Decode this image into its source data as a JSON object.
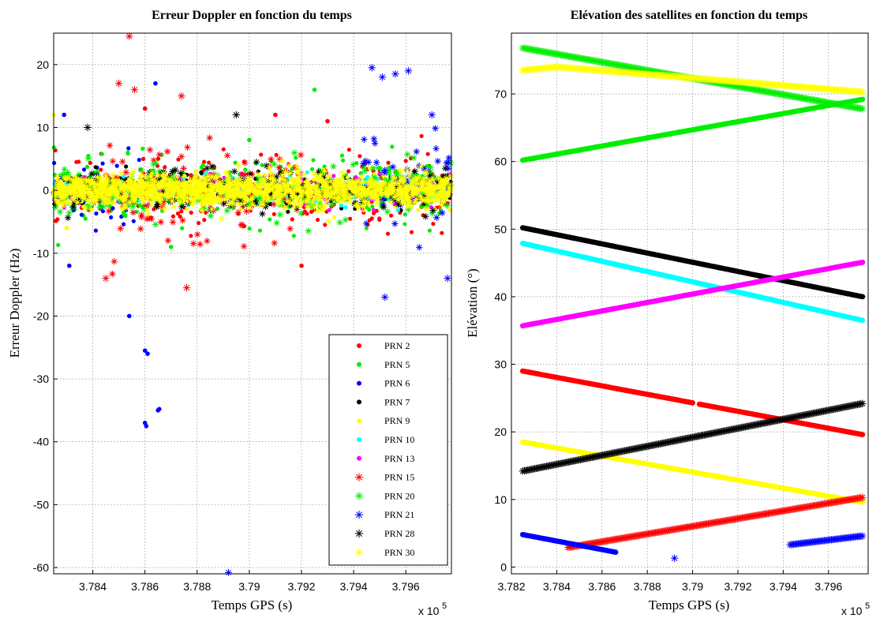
{
  "chart_data": [
    {
      "type": "scatter",
      "title": "Erreur Doppler en fonction du temps",
      "xlabel": "Temps GPS (s)",
      "ylabel": "Erreur Doppler (Hz)",
      "x_multiplier_label": "x 10",
      "x_multiplier_exp": "5",
      "xlim": [
        378250,
        379775
      ],
      "ylim": [
        -61,
        25
      ],
      "xticks": [
        378400,
        378600,
        378800,
        379000,
        379200,
        379400,
        379600
      ],
      "xtick_labels": [
        "3.784",
        "3.786",
        "3.788",
        "3.79",
        "3.792",
        "3.794",
        "3.796"
      ],
      "yticks": [
        -60,
        -50,
        -40,
        -30,
        -20,
        -10,
        0,
        10,
        20
      ],
      "ytick_labels": [
        "-60",
        "-50",
        "-40",
        "-30",
        "-20",
        "-10",
        "0",
        "10",
        "20"
      ],
      "grid": true,
      "legend_position": "bottom-right",
      "series": [
        {
          "name": "PRN 2",
          "color": "#ff0000",
          "marker": "dot",
          "x_range": [
            378250,
            379775
          ],
          "spread": 3.0,
          "peaks": [
            [
              379100,
              12
            ],
            [
              379200,
              -12
            ],
            [
              378600,
              13
            ],
            [
              379300,
              11
            ]
          ]
        },
        {
          "name": "PRN 5",
          "color": "#00ee00",
          "marker": "dot",
          "x_range": [
            378250,
            379775
          ],
          "spread": 2.5,
          "peaks": [
            [
              379250,
              16
            ],
            [
              378700,
              -9
            ],
            [
              379000,
              8
            ]
          ]
        },
        {
          "name": "PRN 6",
          "color": "#0000ff",
          "marker": "dot",
          "x_range": [
            378250,
            378660
          ],
          "spread": 3.5,
          "peaks": [
            [
              378600,
              -25.5
            ],
            [
              378610,
              -26
            ],
            [
              378600,
              -37
            ],
            [
              378605,
              -37.5
            ],
            [
              378650,
              -35
            ],
            [
              378655,
              -34.8
            ],
            [
              378540,
              -20
            ],
            [
              378640,
              17
            ],
            [
              378290,
              12
            ],
            [
              378310,
              -12
            ]
          ]
        },
        {
          "name": "PRN 7",
          "color": "#000000",
          "marker": "dot",
          "x_range": [
            378250,
            379775
          ],
          "spread": 1.2,
          "peaks": []
        },
        {
          "name": "PRN 9",
          "color": "#ffff00",
          "marker": "dot",
          "x_range": [
            378250,
            379775
          ],
          "spread": 1.5,
          "peaks": [
            [
              378250,
              12
            ],
            [
              378300,
              -6
            ]
          ]
        },
        {
          "name": "PRN 10",
          "color": "#00ffff",
          "marker": "dot",
          "x_range": [
            378250,
            379775
          ],
          "spread": 1.2,
          "peaks": []
        },
        {
          "name": "PRN 13",
          "color": "#ff00ff",
          "marker": "dot",
          "x_range": [
            378250,
            379775
          ],
          "spread": 1.2,
          "peaks": []
        },
        {
          "name": "PRN 15",
          "color": "#ff0000",
          "marker": "star",
          "x_range": [
            378450,
            379200
          ],
          "spread": 4.0,
          "peaks": [
            [
              378540,
              24.5
            ],
            [
              378500,
              17
            ],
            [
              378560,
              16
            ],
            [
              378740,
              15
            ],
            [
              378760,
              -15.5
            ],
            [
              378450,
              -14
            ]
          ]
        },
        {
          "name": "PRN 20",
          "color": "#00ee00",
          "marker": "star",
          "x_range": [
            378250,
            379775
          ],
          "spread": 2.2,
          "peaks": []
        },
        {
          "name": "PRN 21",
          "color": "#0000ff",
          "marker": "star",
          "x_range": [
            379430,
            379775
          ],
          "spread": 4.5,
          "peaks": [
            [
              379470,
              19.5
            ],
            [
              379510,
              18
            ],
            [
              379560,
              18.5
            ],
            [
              379610,
              19
            ],
            [
              379520,
              -17
            ],
            [
              379700,
              12
            ],
            [
              379760,
              -14
            ]
          ]
        },
        {
          "name": "PRN 28",
          "color": "#000000",
          "marker": "star",
          "x_range": [
            378250,
            379775
          ],
          "spread": 1.8,
          "peaks": [
            [
              378380,
              10
            ],
            [
              378950,
              12
            ]
          ]
        },
        {
          "name": "PRN 30",
          "color": "#ffff00",
          "marker": "star",
          "x_range": [
            378250,
            379775
          ],
          "spread": 1.5,
          "peaks": []
        }
      ],
      "extra_points": [
        {
          "series": "PRN 21",
          "x": 378920,
          "y": -60.8
        }
      ]
    },
    {
      "type": "scatter",
      "title": "Elévation des satellites en fonction du temps",
      "xlabel": "Temps GPS (s)",
      "ylabel": "Elévation (°)",
      "x_multiplier_label": "x 10",
      "x_multiplier_exp": "5",
      "xlim": [
        378200,
        379775
      ],
      "ylim": [
        -1,
        79
      ],
      "xticks": [
        378200,
        378400,
        378600,
        378800,
        379000,
        379200,
        379400,
        379600
      ],
      "xtick_labels": [
        "3.782",
        "3.784",
        "3.786",
        "3.788",
        "3.79",
        "3.792",
        "3.794",
        "3.796"
      ],
      "yticks": [
        0,
        10,
        20,
        30,
        40,
        50,
        60,
        70
      ],
      "ytick_labels": [
        "0",
        "10",
        "20",
        "30",
        "40",
        "50",
        "60",
        "70"
      ],
      "grid": true,
      "series": [
        {
          "name": "PRN 20",
          "color": "#00ee00",
          "marker": "star",
          "segments": [
            [
              [
                378250,
                76.8
              ],
              [
                379750,
                67.8
              ]
            ]
          ]
        },
        {
          "name": "PRN 30",
          "color": "#ffff00",
          "marker": "star",
          "segments": [
            [
              [
                378250,
                73.5
              ],
              [
                378400,
                74
              ],
              [
                379750,
                70.3
              ]
            ]
          ]
        },
        {
          "name": "PRN 5",
          "color": "#00ee00",
          "marker": "dot",
          "segments": [
            [
              [
                378250,
                60.2
              ],
              [
                379750,
                69.2
              ]
            ]
          ]
        },
        {
          "name": "PRN 7",
          "color": "#000000",
          "marker": "dot",
          "segments": [
            [
              [
                378250,
                50.2
              ],
              [
                379750,
                40
              ]
            ]
          ]
        },
        {
          "name": "PRN 10",
          "color": "#00ffff",
          "marker": "dot",
          "segments": [
            [
              [
                378250,
                47.9
              ],
              [
                379750,
                36.5
              ]
            ]
          ]
        },
        {
          "name": "PRN 13",
          "color": "#ff00ff",
          "marker": "dot",
          "segments": [
            [
              [
                378250,
                35.7
              ],
              [
                379750,
                45.1
              ]
            ]
          ]
        },
        {
          "name": "PRN 2",
          "color": "#ff0000",
          "marker": "dot",
          "segments": [
            [
              [
                378250,
                29
              ],
              [
                379000,
                24.3
              ]
            ],
            [
              [
                379030,
                24.1
              ],
              [
                379750,
                19.6
              ]
            ]
          ]
        },
        {
          "name": "PRN 9",
          "color": "#ffff00",
          "marker": "dot",
          "segments": [
            [
              [
                378250,
                18.5
              ],
              [
                379750,
                9.6
              ]
            ]
          ]
        },
        {
          "name": "PRN 28",
          "color": "#000000",
          "marker": "star",
          "segments": [
            [
              [
                378250,
                14.2
              ],
              [
                379750,
                24.2
              ]
            ]
          ]
        },
        {
          "name": "PRN 15",
          "color": "#ff0000",
          "marker": "star",
          "segments": [
            [
              [
                378450,
                2.9
              ],
              [
                379750,
                10.3
              ]
            ]
          ]
        },
        {
          "name": "PRN 6",
          "color": "#0000ff",
          "marker": "dot",
          "segments": [
            [
              [
                378250,
                4.8
              ],
              [
                378660,
                2.2
              ]
            ]
          ]
        },
        {
          "name": "PRN 21",
          "color": "#0000ff",
          "marker": "star",
          "segments": [
            [
              [
                379430,
                3.3
              ],
              [
                379750,
                4.6
              ]
            ]
          ],
          "points": [
            [
              378920,
              1.3
            ]
          ]
        }
      ]
    }
  ]
}
